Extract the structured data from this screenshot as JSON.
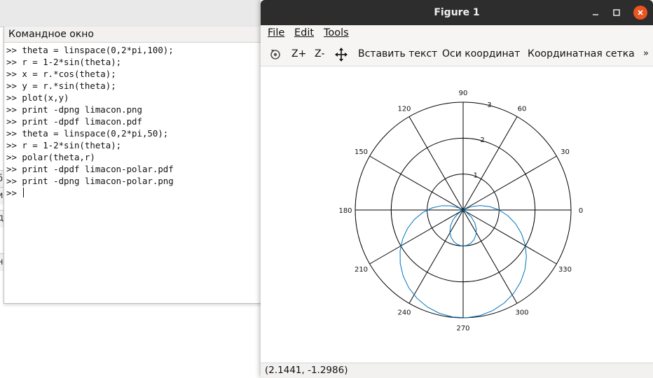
{
  "command_window": {
    "title": "Командное окно",
    "lines": [
      ">> theta = linspace(0,2*pi,100);",
      ">> r = 1-2*sin(theta);",
      ">> x = r.*cos(theta);",
      ">> y = r.*sin(theta);",
      ">> plot(x,y)",
      ">> print -dpng limacon.png",
      ">> print -dpdf limacon.pdf",
      ">> theta = linspace(0,2*pi,50);",
      ">> r = 1-2*sin(theta);",
      ">> polar(theta,r)",
      ">> print -dpdf limacon-polar.pdf",
      ">> print -dpng limacon-polar.png",
      ">> "
    ]
  },
  "background_fragments": [
    "б",
    "и",
    "д",
    "не"
  ],
  "figure": {
    "title": "Figure 1",
    "menu": {
      "file": "File",
      "edit": "Edit",
      "tools": "Tools"
    },
    "toolbar": {
      "zoom_in": "Z+",
      "zoom_out": "Z-",
      "insert_text": "Вставить текст",
      "axes": "Оси координат",
      "grid": "Координатная сетка",
      "overflow": "»"
    },
    "status": "(2.1441, -1.2986)"
  },
  "chart_data": {
    "type": "line",
    "coordinate_system": "polar",
    "equation_from_commands": "r = 1-2*sin(theta), theta = linspace(0,2*pi,50)",
    "radial_ticks": [
      "1",
      "2",
      "3"
    ],
    "radial_max": 3,
    "angle_ticks": [
      "0",
      "30",
      "60",
      "90",
      "120",
      "150",
      "180",
      "210",
      "240",
      "270",
      "300",
      "330"
    ],
    "series": [
      {
        "samples": 50,
        "color": "#0072bd"
      }
    ],
    "grid": true
  },
  "colors": {
    "plot_line": "#0072bd",
    "close_button": "#e95420",
    "titlebar": "#2d2d2d"
  }
}
